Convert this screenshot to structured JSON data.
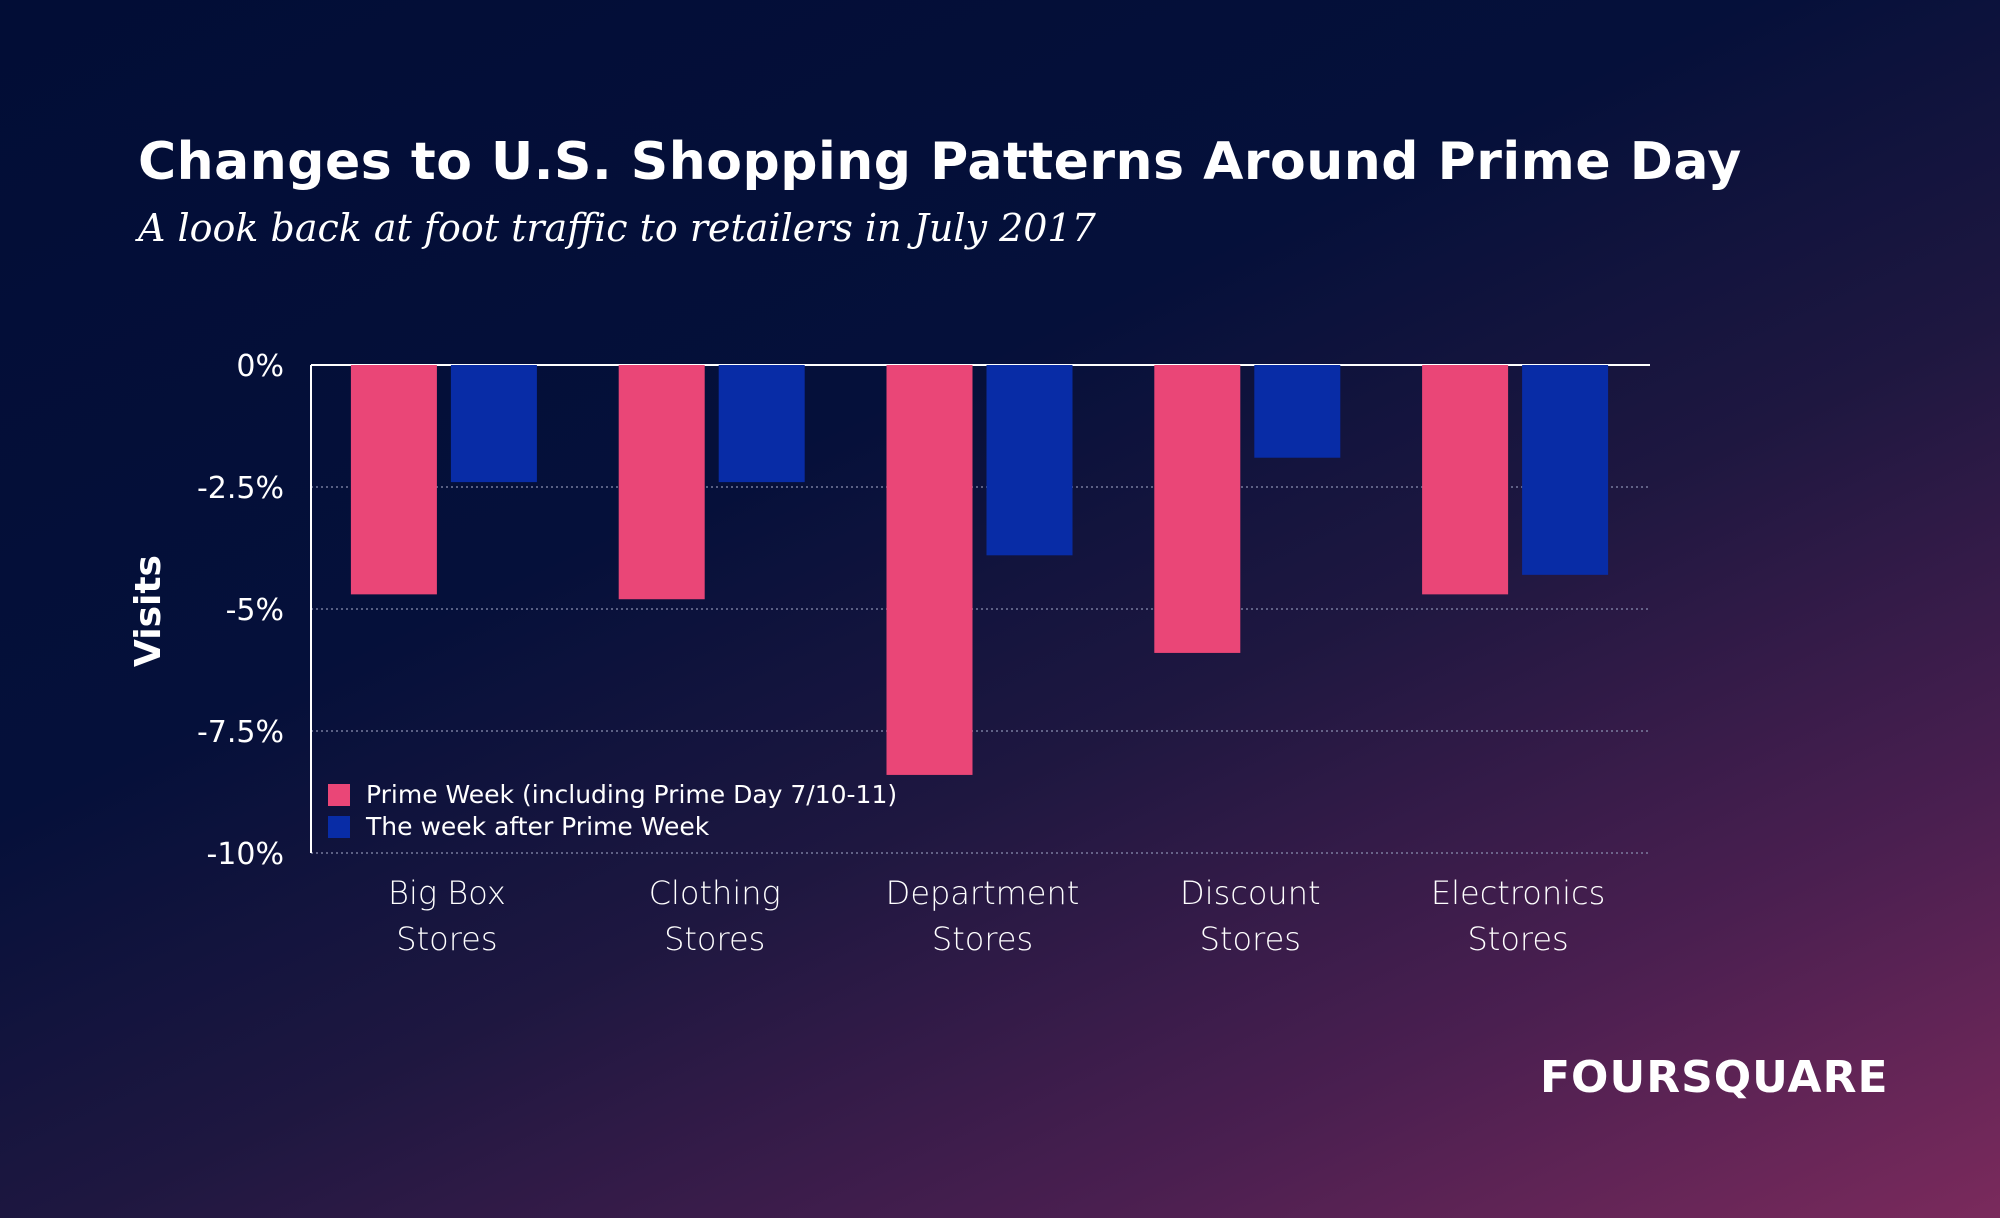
{
  "title": "Changes to U.S. Shopping Patterns Around Prime Day",
  "subtitle": "A look back at foot traffic to retailers in July 2017",
  "brand": "FOURSQUARE",
  "colors": {
    "prime_week": "#ea4677",
    "week_after": "#082ca6",
    "axis": "#ffffff",
    "grid": "#8a8fb0"
  },
  "chart_data": {
    "type": "bar",
    "title": "Changes to U.S. Shopping Patterns Around Prime Day",
    "xlabel": "",
    "ylabel": "Visits",
    "ylim": [
      -10,
      0
    ],
    "yticks": [
      0,
      -2.5,
      -5,
      -7.5,
      -10
    ],
    "ytick_labels": [
      "0%",
      "-2.5%",
      "-5%",
      "-7.5%",
      "-10%"
    ],
    "categories": [
      [
        "Big Box",
        "Stores"
      ],
      [
        "Clothing",
        "Stores"
      ],
      [
        "Department",
        "Stores"
      ],
      [
        "Discount",
        "Stores"
      ],
      [
        "Electronics",
        "Stores"
      ]
    ],
    "series": [
      {
        "name": "Prime Week (including Prime Day 7/10-11)",
        "color": "#ea4677",
        "values": [
          -4.7,
          -4.8,
          -8.4,
          -5.9,
          -4.7
        ]
      },
      {
        "name": "The week after Prime Week",
        "color": "#082ca6",
        "values": [
          -2.4,
          -2.4,
          -3.9,
          -1.9,
          -4.3
        ]
      }
    ],
    "legend_position": "bottom-left",
    "grid": true
  }
}
